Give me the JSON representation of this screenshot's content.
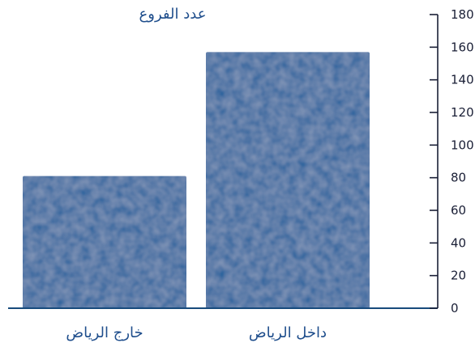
{
  "chart_data": {
    "type": "bar",
    "title": "",
    "ylabel": "عدد الفروع",
    "xlabel": "",
    "categories": [
      "داخل الرياض",
      "خارج الرياض"
    ],
    "values": [
      157,
      81
    ],
    "ylim": [
      0,
      180
    ],
    "yticks": [
      0,
      20,
      40,
      60,
      80,
      100,
      120,
      140,
      160,
      180
    ],
    "y_axis_side": "right",
    "category_order": "right-to-left",
    "grid": false,
    "legend": "none"
  },
  "colors": {
    "bar": "#1f5f9b",
    "bar_dark": "#174a7c",
    "axis": "#1a1f36",
    "label": "#1f4e8c"
  }
}
